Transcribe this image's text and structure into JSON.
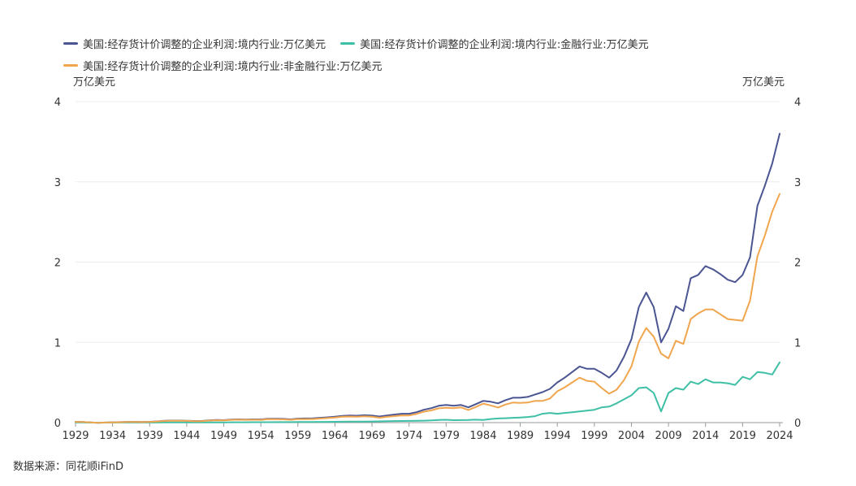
{
  "legend": {
    "items": [
      {
        "label": "美国:经存货计价调整的企业利润:境内行业:万亿美元",
        "color": "#4a5592"
      },
      {
        "label": "美国:经存货计价调整的企业利润:境内行业:金融行业:万亿美元",
        "color": "#3fbfa6"
      },
      {
        "label": "美国:经存货计价调整的企业利润:境内行业:非金融行业:万亿美元",
        "color": "#f0a64e"
      }
    ]
  },
  "unit_left": "万亿美元",
  "unit_right": "万亿美元",
  "source": "数据来源：同花顺iFinD",
  "chart_data": {
    "type": "line",
    "x_tick_labels": [
      "1929",
      "1934",
      "1939",
      "1944",
      "1949",
      "1954",
      "1959",
      "1964",
      "1969",
      "1974",
      "1979",
      "1984",
      "1989",
      "1994",
      "1999",
      "2004",
      "2009",
      "2014",
      "2019",
      "2024"
    ],
    "y_tick_labels_left": [
      "0",
      "1",
      "2",
      "3",
      "4"
    ],
    "y_tick_labels_right": [
      "0",
      "1",
      "2",
      "3",
      "4"
    ],
    "ylim": [
      0,
      4
    ],
    "xlim": [
      1929,
      2024
    ],
    "grid": true,
    "legend_position": "top-left",
    "x": [
      1929,
      1930,
      1931,
      1932,
      1933,
      1934,
      1935,
      1936,
      1937,
      1938,
      1939,
      1940,
      1941,
      1942,
      1943,
      1944,
      1945,
      1946,
      1947,
      1948,
      1949,
      1950,
      1951,
      1952,
      1953,
      1954,
      1955,
      1956,
      1957,
      1958,
      1959,
      1960,
      1961,
      1962,
      1963,
      1964,
      1965,
      1966,
      1967,
      1968,
      1969,
      1970,
      1971,
      1972,
      1973,
      1974,
      1975,
      1976,
      1977,
      1978,
      1979,
      1980,
      1981,
      1982,
      1983,
      1984,
      1985,
      1986,
      1987,
      1988,
      1989,
      1990,
      1991,
      1992,
      1993,
      1994,
      1995,
      1996,
      1997,
      1998,
      1999,
      2000,
      2001,
      2002,
      2003,
      2004,
      2005,
      2006,
      2007,
      2008,
      2009,
      2010,
      2011,
      2012,
      2013,
      2014,
      2015,
      2016,
      2017,
      2018,
      2019,
      2020,
      2021,
      2022,
      2023,
      2024
    ],
    "series": [
      {
        "name": "美国:经存货计价调整的企业利润:境内行业:万亿美元",
        "color": "#4a5592",
        "values": [
          0.01,
          0.008,
          0.002,
          -0.002,
          0.001,
          0.004,
          0.006,
          0.009,
          0.01,
          0.007,
          0.01,
          0.015,
          0.022,
          0.025,
          0.025,
          0.023,
          0.02,
          0.02,
          0.028,
          0.032,
          0.03,
          0.038,
          0.04,
          0.038,
          0.04,
          0.039,
          0.048,
          0.048,
          0.047,
          0.041,
          0.05,
          0.052,
          0.053,
          0.06,
          0.066,
          0.074,
          0.084,
          0.088,
          0.086,
          0.092,
          0.087,
          0.076,
          0.089,
          0.1,
          0.11,
          0.11,
          0.13,
          0.16,
          0.18,
          0.21,
          0.22,
          0.21,
          0.22,
          0.19,
          0.23,
          0.27,
          0.26,
          0.24,
          0.28,
          0.31,
          0.31,
          0.32,
          0.35,
          0.38,
          0.42,
          0.5,
          0.56,
          0.63,
          0.7,
          0.67,
          0.67,
          0.62,
          0.56,
          0.65,
          0.82,
          1.04,
          1.44,
          1.62,
          1.44,
          1.0,
          1.17,
          1.45,
          1.39,
          1.8,
          1.84,
          1.95,
          1.91,
          1.85,
          1.78,
          1.75,
          1.84,
          2.06,
          2.7,
          2.95,
          3.23,
          3.6
        ]
      },
      {
        "name": "美国:经存货计价调整的企业利润:境内行业:金融行业:万亿美元",
        "color": "#3fbfa6",
        "values": [
          0.002,
          0.001,
          0.0,
          0.0,
          0.0,
          0.001,
          0.001,
          0.001,
          0.001,
          0.001,
          0.001,
          0.001,
          0.002,
          0.002,
          0.002,
          0.002,
          0.002,
          0.002,
          0.003,
          0.003,
          0.003,
          0.004,
          0.004,
          0.004,
          0.005,
          0.005,
          0.005,
          0.006,
          0.006,
          0.006,
          0.007,
          0.008,
          0.008,
          0.009,
          0.009,
          0.01,
          0.011,
          0.012,
          0.012,
          0.013,
          0.014,
          0.015,
          0.017,
          0.019,
          0.02,
          0.021,
          0.022,
          0.024,
          0.027,
          0.032,
          0.035,
          0.03,
          0.031,
          0.032,
          0.036,
          0.033,
          0.045,
          0.052,
          0.055,
          0.06,
          0.064,
          0.07,
          0.08,
          0.11,
          0.12,
          0.11,
          0.12,
          0.13,
          0.14,
          0.15,
          0.16,
          0.19,
          0.2,
          0.24,
          0.29,
          0.34,
          0.43,
          0.44,
          0.37,
          0.14,
          0.37,
          0.43,
          0.41,
          0.51,
          0.48,
          0.54,
          0.5,
          0.5,
          0.49,
          0.47,
          0.57,
          0.54,
          0.63,
          0.62,
          0.6,
          0.75
        ]
      },
      {
        "name": "美国:经存货计价调整的企业利润:境内行业:非金融行业:万亿美元",
        "color": "#f0a64e",
        "values": [
          0.009,
          0.007,
          0.002,
          -0.002,
          0.001,
          0.003,
          0.005,
          0.008,
          0.009,
          0.006,
          0.009,
          0.014,
          0.02,
          0.023,
          0.023,
          0.021,
          0.018,
          0.018,
          0.025,
          0.029,
          0.027,
          0.034,
          0.036,
          0.034,
          0.035,
          0.034,
          0.043,
          0.042,
          0.041,
          0.035,
          0.043,
          0.044,
          0.045,
          0.051,
          0.057,
          0.064,
          0.073,
          0.076,
          0.074,
          0.079,
          0.073,
          0.061,
          0.072,
          0.081,
          0.09,
          0.089,
          0.108,
          0.136,
          0.153,
          0.178,
          0.185,
          0.18,
          0.189,
          0.158,
          0.194,
          0.237,
          0.215,
          0.188,
          0.225,
          0.25,
          0.246,
          0.25,
          0.27,
          0.27,
          0.3,
          0.39,
          0.44,
          0.5,
          0.56,
          0.52,
          0.51,
          0.43,
          0.36,
          0.41,
          0.53,
          0.7,
          1.01,
          1.18,
          1.07,
          0.86,
          0.8,
          1.02,
          0.98,
          1.29,
          1.36,
          1.41,
          1.41,
          1.35,
          1.29,
          1.28,
          1.27,
          1.52,
          2.07,
          2.33,
          2.63,
          2.85
        ]
      }
    ]
  }
}
